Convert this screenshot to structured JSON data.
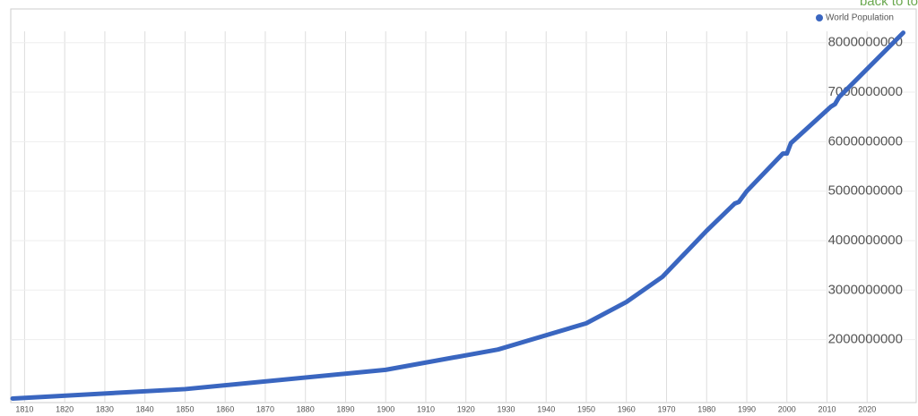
{
  "header": {
    "link": "back to to"
  },
  "chart_data": {
    "type": "line",
    "x": [
      1807,
      1850,
      1900,
      1928,
      1950,
      1960,
      1969,
      1980,
      1987,
      1988,
      1990,
      1999,
      2000,
      2001,
      2011,
      2012,
      2013,
      2029
    ],
    "series": [
      {
        "name": "World Population",
        "color": "#3a66c0",
        "values": [
          810000000,
          1000000000,
          1390000000,
          1800000000,
          2330000000,
          2760000000,
          3270000000,
          4200000000,
          4750000000,
          4780000000,
          5000000000,
          5760000000,
          5760000000,
          5970000000,
          6710000000,
          6760000000,
          6900000000,
          8200000000
        ]
      }
    ],
    "xlim": [
      1807,
      2030
    ],
    "xticks": [
      1810,
      1820,
      1830,
      1840,
      1850,
      1860,
      1870,
      1880,
      1890,
      1900,
      1910,
      1920,
      1930,
      1940,
      1950,
      1960,
      1970,
      1980,
      1990,
      2000,
      2010,
      2020
    ],
    "ylim": [
      800000000,
      8230000000
    ],
    "yticks": [
      2000000000,
      3000000000,
      4000000000,
      5000000000,
      6000000000,
      7000000000,
      8000000000
    ],
    "grid": true,
    "legend": "top-right"
  }
}
